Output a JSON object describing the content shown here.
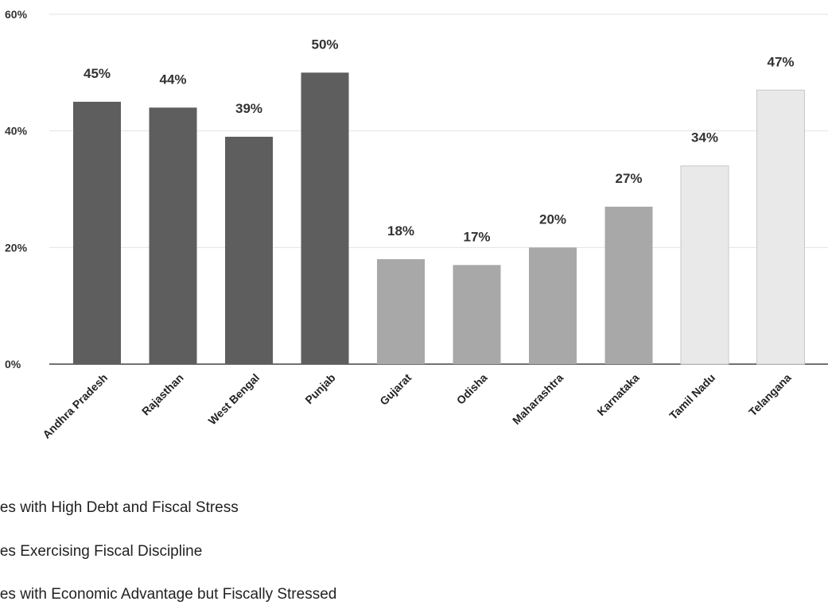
{
  "chart_data": {
    "type": "bar",
    "categories": [
      "Andhra Pradesh",
      "Rajasthan",
      "West Bengal",
      "Punjab",
      "Gujarat",
      "Odisha",
      "Maharashtra",
      "Karnataka",
      "Tamil Nadu",
      "Telangana"
    ],
    "values": [
      45,
      44,
      39,
      50,
      18,
      17,
      20,
      27,
      34,
      47
    ],
    "data_labels": [
      "45%",
      "44%",
      "39%",
      "50%",
      "18%",
      "17%",
      "20%",
      "27%",
      "34%",
      "47%"
    ],
    "groups": [
      0,
      0,
      0,
      0,
      1,
      1,
      1,
      1,
      2,
      2
    ],
    "group_colors": [
      "#5e5e5e",
      "#a8a8a8",
      "#e9e9e9"
    ],
    "ylim": [
      0,
      60
    ],
    "yticks": [
      0,
      20,
      40,
      60
    ],
    "ytick_labels": [
      "0%",
      "20%",
      "40%",
      "60%"
    ],
    "grid": true,
    "legend": [
      {
        "label": "ates with High Debt and Fiscal Stress",
        "group": 0
      },
      {
        "label": "ates Exercising Fiscal Discipline",
        "group": 1
      },
      {
        "label": "ates with Economic Advantage but Fiscally Stressed",
        "group": 2
      }
    ],
    "legend_placement": "bottom-left"
  }
}
